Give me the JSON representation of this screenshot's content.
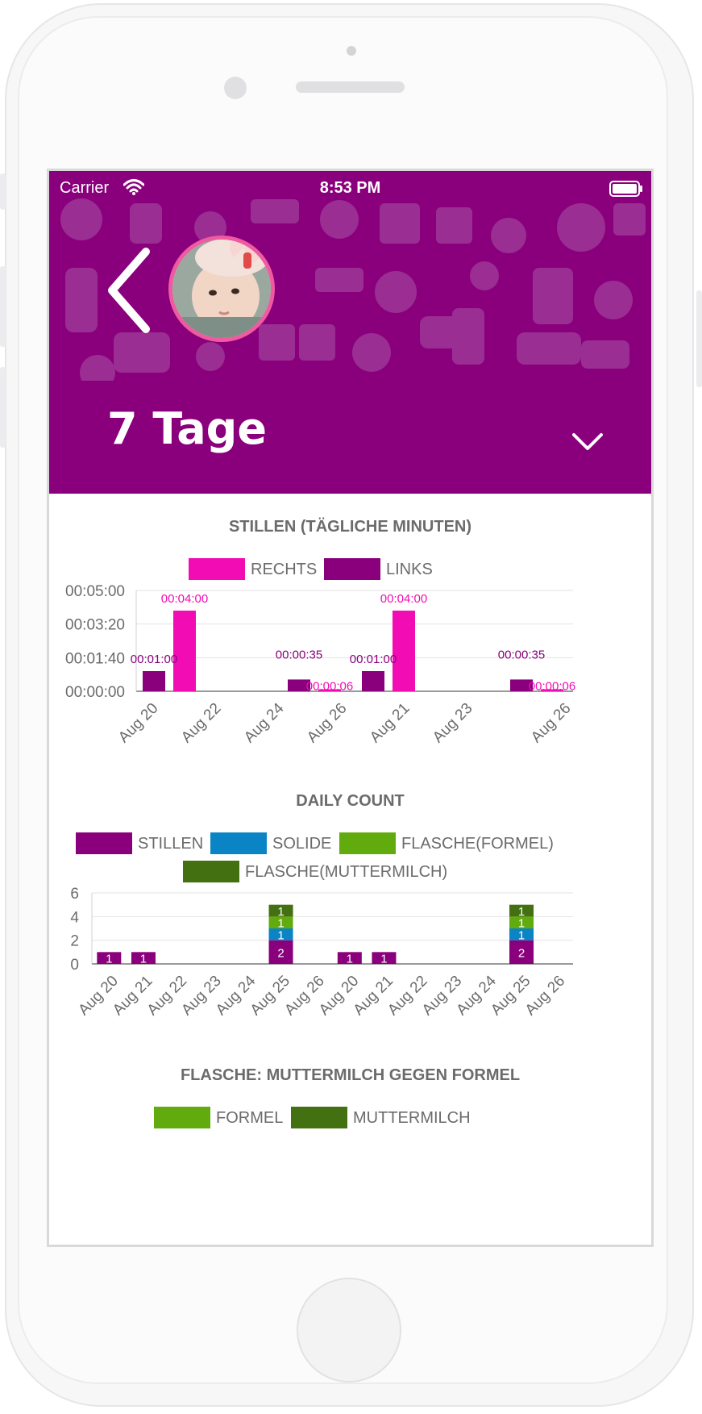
{
  "status_bar": {
    "carrier": "Carrier",
    "time": "8:53 PM"
  },
  "header": {
    "range_title": "7 Tage"
  },
  "colors": {
    "header_bg": "#8a007c",
    "rechts": "#f20cb4",
    "links": "#8a007c",
    "stillen": "#8a007c",
    "solide": "#0a84c4",
    "flasche_formel": "#62ab0f",
    "flasche_muttermilch": "#437010"
  },
  "charts": [
    {
      "title": "STILLEN (TÄGLICHE MINUTEN)",
      "legend": [
        "RECHTS",
        "LINKS"
      ],
      "chart_data": {
        "type": "bar",
        "title": "STILLEN (TÄGLICHE MINUTEN)",
        "y_ticks": [
          "00:00:00",
          "00:01:40",
          "00:03:20",
          "00:05:00"
        ],
        "ylim_seconds": [
          0,
          300
        ],
        "x_ticks": [
          "Aug 20",
          "Aug 22",
          "Aug 24",
          "Aug 26",
          "Aug 21",
          "Aug 23",
          "Aug 26"
        ],
        "bars": [
          {
            "series": "LINKS",
            "seconds": 60,
            "label": "00:01:00"
          },
          {
            "series": "RECHTS",
            "seconds": 240,
            "label": "00:04:00"
          },
          {
            "series": "LINKS",
            "seconds": 35,
            "label": "00:00:35"
          },
          {
            "series": "RECHTS",
            "seconds": 6,
            "label": "00:00:06"
          },
          {
            "series": "LINKS",
            "seconds": 60,
            "label": "00:01:00"
          },
          {
            "series": "RECHTS",
            "seconds": 240,
            "label": "00:04:00"
          },
          {
            "series": "LINKS",
            "seconds": 35,
            "label": "00:00:35"
          },
          {
            "series": "RECHTS",
            "seconds": 6,
            "label": "00:00:06"
          }
        ]
      }
    },
    {
      "title": "DAILY COUNT",
      "legend": [
        "STILLEN",
        "SOLIDE",
        "FLASCHE(FORMEL)",
        "FLASCHE(MUTTERMILCH)"
      ],
      "chart_data": {
        "type": "bar",
        "stacked": true,
        "title": "DAILY COUNT",
        "y_ticks": [
          "0",
          "2",
          "4",
          "6"
        ],
        "ylim": [
          0,
          6
        ],
        "categories": [
          "Aug 20",
          "Aug 21",
          "Aug 22",
          "Aug 23",
          "Aug 24",
          "Aug 25",
          "Aug 26",
          "Aug 20",
          "Aug 21",
          "Aug 22",
          "Aug 23",
          "Aug 24",
          "Aug 25",
          "Aug 26"
        ],
        "series": [
          {
            "name": "STILLEN",
            "values": [
              1,
              1,
              0,
              0,
              0,
              2,
              0,
              1,
              1,
              0,
              0,
              0,
              2,
              0
            ]
          },
          {
            "name": "SOLIDE",
            "values": [
              0,
              0,
              0,
              0,
              0,
              1,
              0,
              0,
              0,
              0,
              0,
              0,
              1,
              0
            ]
          },
          {
            "name": "FLASCHE(FORMEL)",
            "values": [
              0,
              0,
              0,
              0,
              0,
              1,
              0,
              0,
              0,
              0,
              0,
              0,
              1,
              0
            ]
          },
          {
            "name": "FLASCHE(MUTTERMILCH)",
            "values": [
              0,
              0,
              0,
              0,
              0,
              1,
              0,
              0,
              0,
              0,
              0,
              0,
              1,
              0
            ]
          }
        ]
      }
    },
    {
      "title": "FLASCHE: MUTTERMILCH GEGEN FORMEL",
      "legend": [
        "FORMEL",
        "MUTTERMILCH"
      ]
    }
  ]
}
